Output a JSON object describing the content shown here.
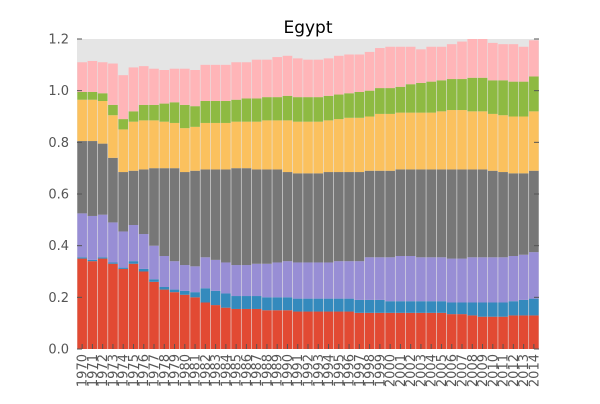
{
  "chart_data": {
    "type": "bar",
    "stacked": true,
    "title": "Egypt",
    "xlabel": "",
    "ylabel": "",
    "ylim": [
      0,
      1.2
    ],
    "yticks": [
      "0.0",
      "0.2",
      "0.4",
      "0.6",
      "0.8",
      "1.0",
      "1.2"
    ],
    "grid": false,
    "legend": "none",
    "background": "#e5e5e5",
    "categories": [
      "1970",
      "1971",
      "1972",
      "1973",
      "1974",
      "1975",
      "1976",
      "1977",
      "1978",
      "1979",
      "1980",
      "1981",
      "1982",
      "1983",
      "1984",
      "1985",
      "1986",
      "1987",
      "1988",
      "1989",
      "1990",
      "1991",
      "1992",
      "1993",
      "1994",
      "1995",
      "1996",
      "1997",
      "1998",
      "1999",
      "2000",
      "2001",
      "2002",
      "2003",
      "2004",
      "2005",
      "2006",
      "2007",
      "2008",
      "2009",
      "2010",
      "2011",
      "2012",
      "2013",
      "2014"
    ],
    "series": [
      {
        "color": "#e24a33",
        "values": [
          0.35,
          0.34,
          0.35,
          0.33,
          0.31,
          0.33,
          0.3,
          0.26,
          0.23,
          0.22,
          0.21,
          0.2,
          0.18,
          0.17,
          0.16,
          0.155,
          0.155,
          0.155,
          0.15,
          0.15,
          0.15,
          0.145,
          0.145,
          0.145,
          0.145,
          0.145,
          0.145,
          0.14,
          0.14,
          0.14,
          0.14,
          0.14,
          0.14,
          0.14,
          0.14,
          0.14,
          0.135,
          0.135,
          0.13,
          0.125,
          0.125,
          0.125,
          0.13,
          0.13,
          0.13
        ]
      },
      {
        "color": "#348abd",
        "values": [
          0.005,
          0.005,
          0.005,
          0.005,
          0.005,
          0.01,
          0.01,
          0.01,
          0.01,
          0.01,
          0.015,
          0.02,
          0.055,
          0.055,
          0.055,
          0.05,
          0.05,
          0.05,
          0.05,
          0.05,
          0.05,
          0.05,
          0.05,
          0.05,
          0.05,
          0.05,
          0.05,
          0.05,
          0.05,
          0.05,
          0.045,
          0.045,
          0.045,
          0.045,
          0.045,
          0.045,
          0.045,
          0.045,
          0.05,
          0.055,
          0.055,
          0.055,
          0.055,
          0.06,
          0.065
        ]
      },
      {
        "color": "#988ed5",
        "values": [
          0.17,
          0.17,
          0.165,
          0.155,
          0.14,
          0.14,
          0.135,
          0.13,
          0.12,
          0.11,
          0.1,
          0.1,
          0.12,
          0.12,
          0.12,
          0.12,
          0.12,
          0.125,
          0.13,
          0.135,
          0.14,
          0.14,
          0.14,
          0.14,
          0.14,
          0.145,
          0.145,
          0.15,
          0.165,
          0.165,
          0.17,
          0.175,
          0.175,
          0.17,
          0.17,
          0.17,
          0.17,
          0.17,
          0.175,
          0.175,
          0.175,
          0.175,
          0.175,
          0.175,
          0.18
        ]
      },
      {
        "color": "#777777",
        "values": [
          0.28,
          0.29,
          0.275,
          0.25,
          0.23,
          0.21,
          0.25,
          0.3,
          0.34,
          0.36,
          0.36,
          0.37,
          0.34,
          0.35,
          0.36,
          0.375,
          0.375,
          0.365,
          0.365,
          0.36,
          0.345,
          0.345,
          0.345,
          0.345,
          0.35,
          0.345,
          0.345,
          0.345,
          0.335,
          0.335,
          0.335,
          0.335,
          0.335,
          0.34,
          0.34,
          0.34,
          0.345,
          0.345,
          0.34,
          0.34,
          0.335,
          0.33,
          0.32,
          0.315,
          0.315
        ]
      },
      {
        "color": "#fbc15e",
        "values": [
          0.16,
          0.16,
          0.165,
          0.165,
          0.165,
          0.19,
          0.19,
          0.185,
          0.18,
          0.175,
          0.17,
          0.17,
          0.18,
          0.18,
          0.18,
          0.18,
          0.18,
          0.185,
          0.19,
          0.19,
          0.2,
          0.2,
          0.2,
          0.2,
          0.2,
          0.205,
          0.21,
          0.21,
          0.21,
          0.22,
          0.22,
          0.22,
          0.22,
          0.22,
          0.22,
          0.225,
          0.23,
          0.23,
          0.225,
          0.225,
          0.22,
          0.22,
          0.22,
          0.22,
          0.23
        ]
      },
      {
        "color": "#8eba42",
        "values": [
          0.03,
          0.03,
          0.03,
          0.04,
          0.04,
          0.04,
          0.06,
          0.06,
          0.07,
          0.08,
          0.09,
          0.08,
          0.085,
          0.085,
          0.085,
          0.085,
          0.09,
          0.09,
          0.09,
          0.09,
          0.095,
          0.095,
          0.095,
          0.095,
          0.095,
          0.095,
          0.095,
          0.1,
          0.1,
          0.1,
          0.1,
          0.1,
          0.11,
          0.115,
          0.12,
          0.12,
          0.12,
          0.12,
          0.13,
          0.13,
          0.13,
          0.135,
          0.135,
          0.135,
          0.135
        ]
      },
      {
        "color": "#ffb5b8",
        "values": [
          0.115,
          0.12,
          0.12,
          0.16,
          0.17,
          0.17,
          0.15,
          0.14,
          0.13,
          0.13,
          0.14,
          0.14,
          0.14,
          0.14,
          0.14,
          0.145,
          0.14,
          0.15,
          0.145,
          0.155,
          0.155,
          0.15,
          0.145,
          0.145,
          0.145,
          0.15,
          0.15,
          0.145,
          0.15,
          0.155,
          0.16,
          0.155,
          0.145,
          0.13,
          0.135,
          0.13,
          0.135,
          0.145,
          0.15,
          0.15,
          0.145,
          0.14,
          0.145,
          0.135,
          0.14
        ]
      }
    ]
  }
}
